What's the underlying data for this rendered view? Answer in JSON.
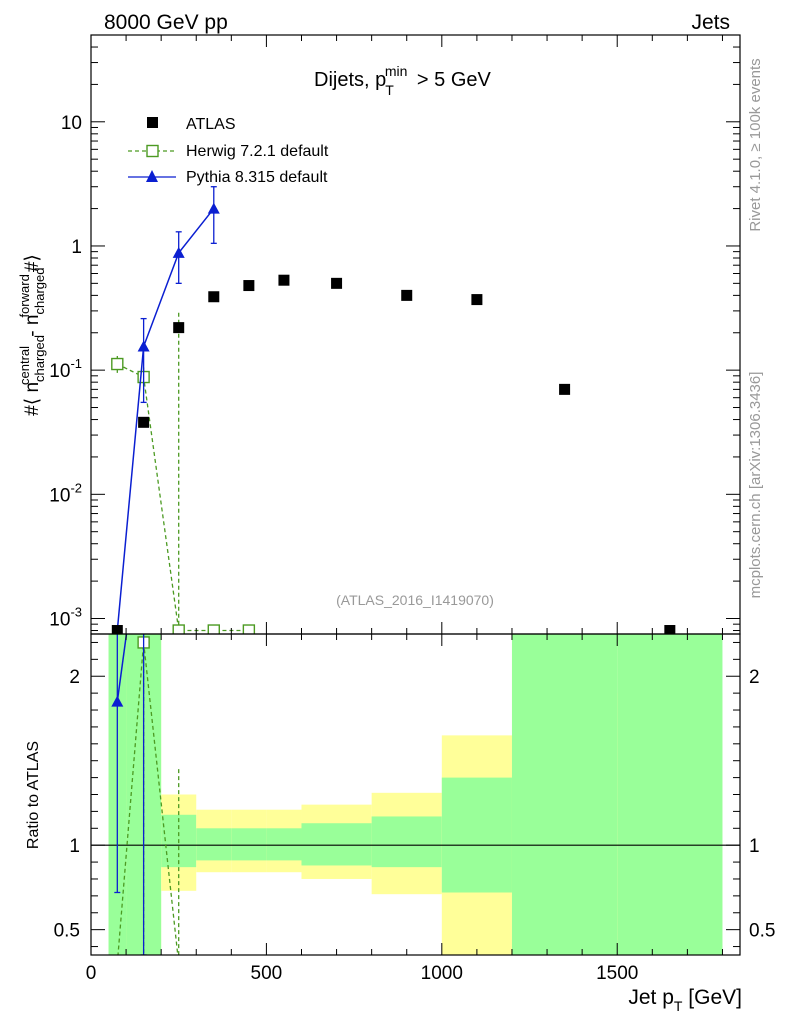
{
  "header": {
    "left": "8000 GeV pp",
    "right": "Jets"
  },
  "side": {
    "rivet": "Rivet 4.1.0, ≥ 100k events",
    "mcplots": "mcplots.cern.ch [arXiv:1306.3436]"
  },
  "chart_data": {
    "type": "scatter",
    "title": "Dijets, p_T^min > 5 GeV",
    "analysis_id": "(ATLAS_2016_I1419070)",
    "ylabel": "#⟨ n_charged^central - n_charged^forward #⟩",
    "xlabel": "Jet p_T [GeV]",
    "ratio_ylabel": "Ratio to ATLAS",
    "x_range": [
      0,
      1850
    ],
    "y_range_log": [
      0.00075,
      50
    ],
    "ratio_range": [
      0.35,
      2.25
    ],
    "main_ytick_labels": [
      "10^-3",
      "10^-2",
      "10^-1",
      "1",
      "10"
    ],
    "ratio_ytick_labels": [
      "0.5",
      "1",
      "2"
    ],
    "xtick_labels": [
      "0",
      "500",
      "1000",
      "1500"
    ],
    "legend": [
      "ATLAS",
      "Herwig 7.2.1 default",
      "Pythia 8.315 default"
    ],
    "series": [
      {
        "name": "ATLAS",
        "color": "#000000",
        "x": [
          75,
          150,
          250,
          350,
          450,
          550,
          700,
          900,
          1100,
          1350,
          1650
        ],
        "y": [
          0.0008,
          0.038,
          0.22,
          0.39,
          0.48,
          0.53,
          0.5,
          0.4,
          0.37,
          0.07,
          0.0008
        ]
      },
      {
        "name": "Herwig 7.2.1 default",
        "color": "#4c9a22",
        "x": [
          75,
          150,
          250,
          350,
          450
        ],
        "y": [
          0.112,
          0.088,
          0.0008,
          0.0008,
          0.0008
        ],
        "yerr_up": [
          0.13,
          0.105,
          0.29,
          0,
          0
        ],
        "yerr_down": [
          0.095,
          0.07,
          0.0008,
          0,
          0
        ]
      },
      {
        "name": "Pythia 8.315 default",
        "color": "#0b1fd1",
        "x": [
          75,
          150,
          250,
          350
        ],
        "y": [
          0.0008,
          0.155,
          0.88,
          2.0
        ],
        "yerr_up": [
          0.0008,
          0.26,
          1.3,
          3.0
        ],
        "yerr_down": [
          0.0008,
          0.055,
          0.5,
          1.05
        ]
      }
    ],
    "ratio_bands": [
      {
        "x0": 50,
        "x1": 100,
        "y_lo": 0.35,
        "y_hi": 2.25,
        "yel_lo": 0.35,
        "yel_hi": 2.25
      },
      {
        "x0": 100,
        "x1": 200,
        "y_lo": 0.35,
        "y_hi": 2.25,
        "yel_lo": 0.35,
        "yel_hi": 2.25
      },
      {
        "x0": 200,
        "x1": 300,
        "y_lo": 0.87,
        "y_hi": 1.18,
        "yel_lo": 0.73,
        "yel_hi": 1.3
      },
      {
        "x0": 300,
        "x1": 400,
        "y_lo": 0.91,
        "y_hi": 1.1,
        "yel_lo": 0.84,
        "yel_hi": 1.21
      },
      {
        "x0": 400,
        "x1": 500,
        "y_lo": 0.91,
        "y_hi": 1.1,
        "yel_lo": 0.84,
        "yel_hi": 1.21
      },
      {
        "x0": 500,
        "x1": 600,
        "y_lo": 0.91,
        "y_hi": 1.1,
        "yel_lo": 0.84,
        "yel_hi": 1.21
      },
      {
        "x0": 600,
        "x1": 800,
        "y_lo": 0.88,
        "y_hi": 1.13,
        "yel_lo": 0.8,
        "yel_hi": 1.24
      },
      {
        "x0": 800,
        "x1": 1000,
        "y_lo": 0.87,
        "y_hi": 1.17,
        "yel_lo": 0.71,
        "yel_hi": 1.31
      },
      {
        "x0": 1000,
        "x1": 1200,
        "y_lo": 0.72,
        "y_hi": 1.4,
        "yel_lo": 0.35,
        "yel_hi": 1.65
      },
      {
        "x0": 1200,
        "x1": 1500,
        "y_lo": 0.35,
        "y_hi": 2.25,
        "yel_lo": 0.35,
        "yel_hi": 2.25
      },
      {
        "x0": 1500,
        "x1": 1800,
        "y_lo": 0.35,
        "y_hi": 2.25,
        "yel_lo": 0.35,
        "yel_hi": 1.9
      }
    ],
    "ratio_series": [
      {
        "name": "Herwig 7.2.1 default",
        "color": "#4c9a22",
        "x": [
          75,
          150,
          250
        ],
        "y": [
          0.3,
          2.2,
          0.3
        ],
        "vlines": [
          [
            150,
            0.35,
            2.25
          ],
          [
            250,
            0.35,
            1.45
          ]
        ]
      },
      {
        "name": "Pythia 8.315 default",
        "color": "#0b1fd1",
        "x": [
          75,
          150
        ],
        "y": [
          1.85,
          3.0
        ],
        "yerr_up": [
          2.25,
          2.25
        ],
        "yerr_down": [
          0.72,
          0.35
        ]
      }
    ]
  }
}
